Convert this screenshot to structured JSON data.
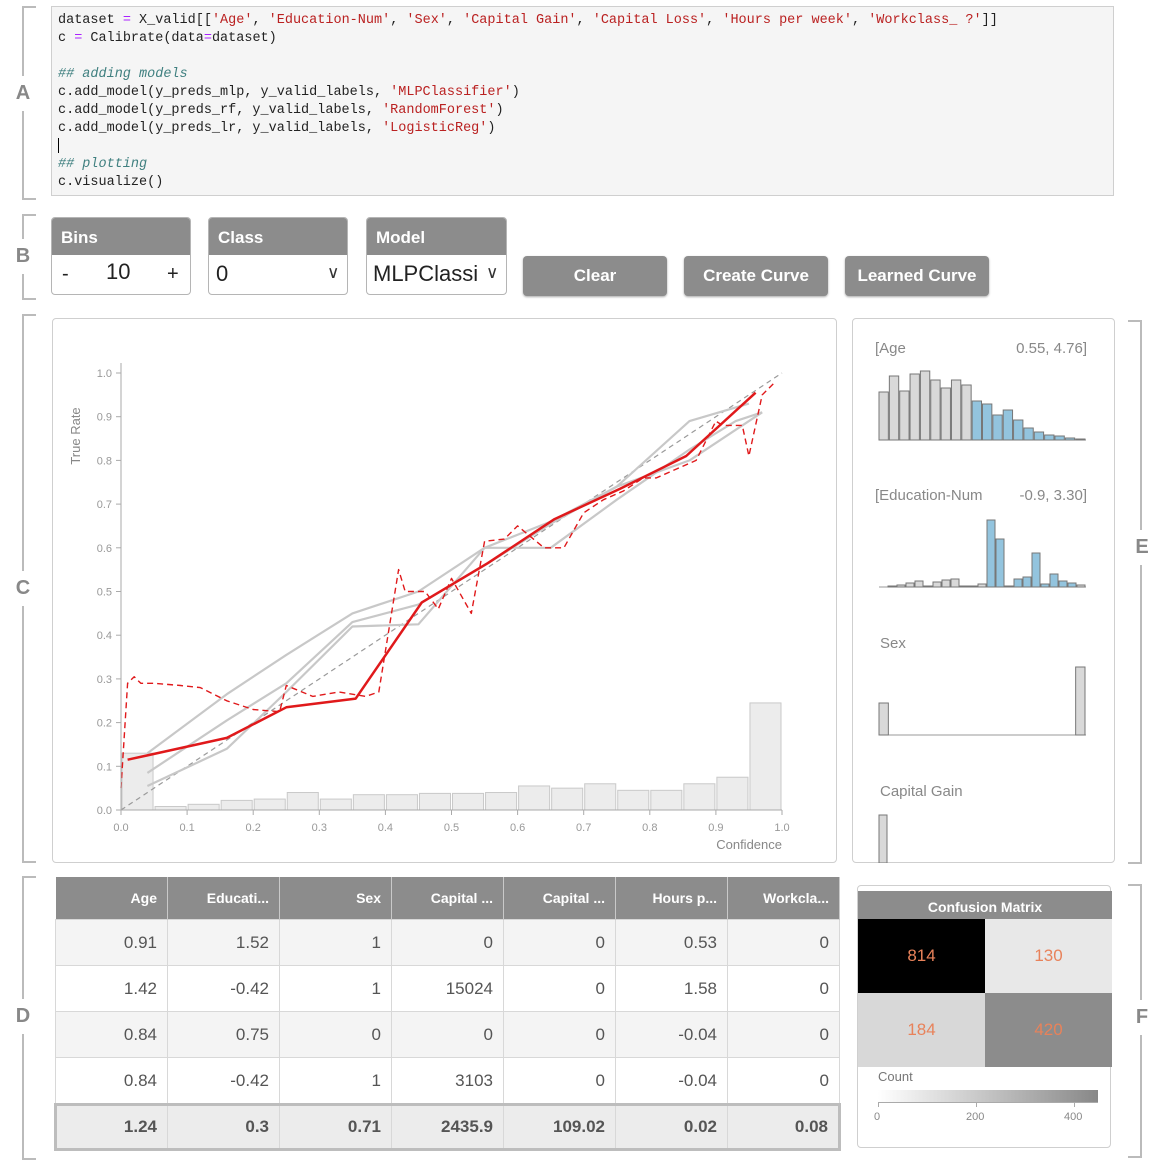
{
  "sections": {
    "a": "A",
    "b": "B",
    "c": "C",
    "d": "D",
    "e": "E",
    "f": "F"
  },
  "code": {
    "l1": {
      "a": "dataset ",
      "op": "=",
      "b": " X_valid[[",
      "s1": "'Age'",
      "c1": ", ",
      "s2": "'Education-Num'",
      "c2": ", ",
      "s3": "'Sex'",
      "c3": ", ",
      "s4": "'Capital Gain'",
      "c4": ", ",
      "s5": "'Capital Loss'",
      "c5": ", ",
      "s6": "'Hours per week'",
      "c6": ", ",
      "s7": "'Workclass_ ?'",
      "end": "]]"
    },
    "l2": {
      "a": "c ",
      "op": "=",
      "b": " Calibrate(data",
      "op2": "=",
      "c": "dataset)"
    },
    "l3": "## adding models",
    "l4": {
      "a": "c.add_model(y_preds_mlp, y_valid_labels, ",
      "s": "'MLPClassifier'",
      "end": ")"
    },
    "l5": {
      "a": "c.add_model(y_preds_rf, y_valid_labels, ",
      "s": "'RandomForest'",
      "end": ")"
    },
    "l6": {
      "a": "c.add_model(y_preds_lr, y_valid_labels, ",
      "s": "'LogisticReg'",
      "end": ")"
    },
    "l8": "## plotting",
    "l9": "c.visualize()"
  },
  "controls": {
    "bins": {
      "label": "Bins",
      "minus": "-",
      "value": "10",
      "plus": "+"
    },
    "class": {
      "label": "Class",
      "value": "0",
      "chevron": "∨"
    },
    "model": {
      "label": "Model",
      "value": "MLPClassi",
      "chevron": "∨"
    },
    "clear_label": "Clear",
    "create_curve_label": "Create Curve",
    "learned_curve_label": "Learned Curve"
  },
  "colors": {
    "accent_red": "#e0191b",
    "hist_blue": "#93c4de",
    "ref_gray": "#c6c6c6",
    "header_gray": "#8c8c8c"
  },
  "chart_data": {
    "type": "line",
    "title": "",
    "xlabel": "Confidence",
    "ylabel": "True Rate",
    "xlim": [
      0,
      1
    ],
    "ylim": [
      0,
      1
    ],
    "xticks": [
      "0.0",
      "0.1",
      "0.2",
      "0.3",
      "0.4",
      "0.5",
      "0.6",
      "0.7",
      "0.8",
      "0.9",
      "1.0"
    ],
    "yticks": [
      "0.0",
      "0.1",
      "0.2",
      "0.3",
      "0.4",
      "0.5",
      "0.6",
      "0.7",
      "0.8",
      "0.9",
      "1.0"
    ],
    "grid": false,
    "series": [
      {
        "x": [
          0.0,
          1.0
        ],
        "y": [
          0.0,
          1.0
        ],
        "color": "#9a9a9a",
        "style": "dashed"
      },
      {
        "x": [
          0.04,
          0.16,
          0.25,
          0.35,
          0.45,
          0.55,
          0.65,
          0.75,
          0.86,
          0.94,
          0.97
        ],
        "y": [
          0.13,
          0.265,
          0.355,
          0.45,
          0.5,
          0.6,
          0.66,
          0.74,
          0.8,
          0.88,
          0.91
        ],
        "color": "#c8c8c8",
        "style": "solid"
      },
      {
        "x": [
          0.04,
          0.16,
          0.25,
          0.35,
          0.45,
          0.55,
          0.65,
          0.75,
          0.86,
          0.93,
          0.97
        ],
        "y": [
          0.055,
          0.14,
          0.27,
          0.42,
          0.425,
          0.6,
          0.6,
          0.71,
          0.825,
          0.89,
          0.91
        ],
        "color": "#c8c8c8",
        "style": "solid"
      },
      {
        "x": [
          0.04,
          0.16,
          0.25,
          0.35,
          0.45,
          0.55,
          0.65,
          0.75,
          0.86,
          0.95
        ],
        "y": [
          0.085,
          0.205,
          0.29,
          0.43,
          0.47,
          0.56,
          0.655,
          0.74,
          0.89,
          0.93
        ],
        "color": "#c8c8c8",
        "style": "solid"
      },
      {
        "x": [
          0.0,
          0.01,
          0.02,
          0.03,
          0.05,
          0.09,
          0.12,
          0.16,
          0.2,
          0.24,
          0.25,
          0.29,
          0.33,
          0.37,
          0.39,
          0.42,
          0.43,
          0.46,
          0.48,
          0.5,
          0.53,
          0.55,
          0.58,
          0.6,
          0.64,
          0.67,
          0.7,
          0.73,
          0.76,
          0.79,
          0.81,
          0.84,
          0.87,
          0.9,
          0.91,
          0.94,
          0.95,
          0.97,
          0.99
        ],
        "y": [
          0.05,
          0.29,
          0.305,
          0.29,
          0.29,
          0.285,
          0.28,
          0.25,
          0.23,
          0.225,
          0.285,
          0.26,
          0.27,
          0.26,
          0.27,
          0.55,
          0.5,
          0.5,
          0.46,
          0.53,
          0.45,
          0.615,
          0.62,
          0.65,
          0.6,
          0.6,
          0.68,
          0.71,
          0.73,
          0.76,
          0.76,
          0.78,
          0.8,
          0.89,
          0.88,
          0.88,
          0.81,
          0.95,
          0.98
        ],
        "color": "#e0191b",
        "style": "dashed"
      },
      {
        "x": [
          0.01,
          0.04,
          0.16,
          0.25,
          0.355,
          0.455,
          0.555,
          0.655,
          0.755,
          0.855,
          0.96
        ],
        "y": [
          0.115,
          0.125,
          0.165,
          0.235,
          0.255,
          0.475,
          0.565,
          0.665,
          0.735,
          0.81,
          0.955
        ],
        "color": "#e0191b",
        "style": "solid"
      }
    ],
    "bar_series": {
      "name": "count",
      "values": [
        0.13,
        0.008,
        0.013,
        0.022,
        0.025,
        0.04,
        0.025,
        0.035,
        0.035,
        0.038,
        0.038,
        0.04,
        0.055,
        0.05,
        0.06,
        0.045,
        0.045,
        0.06,
        0.075,
        0.245
      ],
      "bins": 20
    }
  },
  "features": [
    {
      "name": "[Age",
      "range": "0.55, 4.76]",
      "bars": [
        48,
        64,
        49,
        66,
        69,
        60,
        52,
        60,
        55,
        39,
        36,
        25,
        30,
        20,
        12,
        8,
        5,
        4,
        2,
        1
      ],
      "highlight": [
        9,
        19
      ]
    },
    {
      "name": "[Education-Num",
      "range": "-0.9, 3.30]",
      "bars": [
        0,
        1,
        2,
        4,
        6,
        1,
        5,
        7,
        8,
        1,
        1,
        3,
        67,
        48,
        1,
        8,
        10,
        34,
        3,
        13,
        6,
        4,
        2
      ],
      "highlight": [
        12,
        21
      ]
    },
    {
      "name": "Sex",
      "range": "",
      "bars": [
        32,
        0,
        0,
        0,
        0,
        0,
        0,
        0,
        0,
        0,
        0,
        0,
        0,
        0,
        0,
        0,
        0,
        0,
        0,
        68
      ],
      "highlight": []
    },
    {
      "name": "Capital Gain",
      "range": "",
      "bars": [
        48
      ],
      "highlight": []
    }
  ],
  "table": {
    "columns": [
      "Age",
      "Educati...",
      "Sex",
      "Capital ...",
      "Capital ...",
      "Hours p...",
      "Workcla..."
    ],
    "rows": [
      [
        "0.91",
        "1.52",
        "1",
        "0",
        "0",
        "0.53",
        "0"
      ],
      [
        "1.42",
        "-0.42",
        "1",
        "15024",
        "0",
        "1.58",
        "0"
      ],
      [
        "0.84",
        "0.75",
        "0",
        "0",
        "0",
        "-0.04",
        "0"
      ],
      [
        "0.84",
        "-0.42",
        "1",
        "3103",
        "0",
        "-0.04",
        "0"
      ]
    ],
    "summary": [
      "1.24",
      "0.3",
      "0.71",
      "2435.9",
      "109.02",
      "0.02",
      "0.08"
    ]
  },
  "confusion": {
    "title": "Confusion Matrix",
    "values": [
      [
        "814",
        "130"
      ],
      [
        "184",
        "420"
      ]
    ],
    "fill": [
      [
        "#000000",
        "#e8e8e8"
      ],
      [
        "#d8d8d8",
        "#8c8c8c"
      ]
    ],
    "legend_label": "Count",
    "legend_ticks": [
      "0",
      "200",
      "400"
    ]
  }
}
